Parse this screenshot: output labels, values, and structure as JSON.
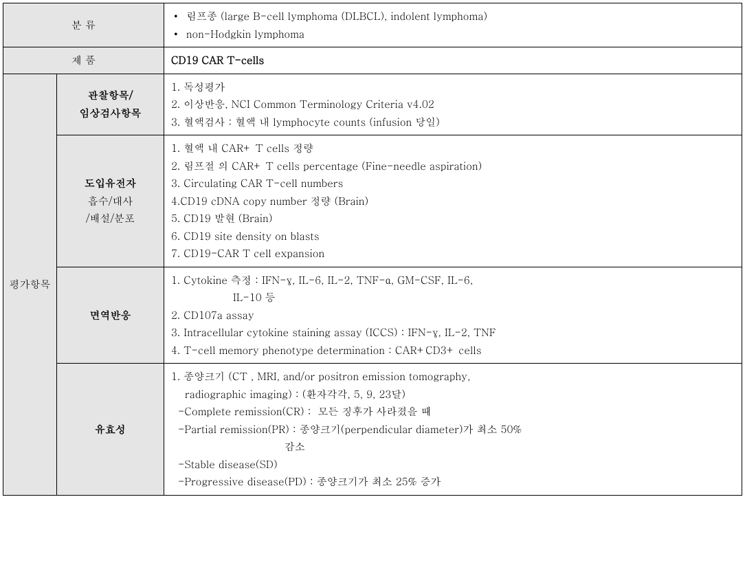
{
  "headers": {
    "classification": "분        류",
    "product": "제        품",
    "evaluation": "평가항목"
  },
  "classification_items": [
    "림프종 (large B-cell lymphoma (DLBCL), indolent lymphoma)",
    "non-Hodgkin lymphoma"
  ],
  "product_value": "CD19 CAR T-cells",
  "rows": [
    {
      "label_main": "관찰항목/",
      "label_line2": "임상검사항목",
      "label_bold": true,
      "items": [
        "1. 독성평가",
        "2. 이상반응, NCI Common Terminology Criteria v4.02",
        "3. 혈액검사 : 혈액 내 lymphocyte counts (infusion 당일)"
      ]
    },
    {
      "label_main": "도입유전자",
      "label_sub": "흡수/대사",
      "label_sub2": "/배설/분포",
      "label_bold": true,
      "items": [
        "1. 혈액 내 CAR+ T cells 정량",
        "2. 림프절 의 CAR+ T cells percentage (Fine-needle aspiration)",
        "3. Circulating CAR T-cell numbers",
        "4.CD19 cDNA copy number 정량 (Brain)",
        "5. CD19 발현 (Brain)",
        "6. CD19 site density on blasts",
        "7. CD19-CAR T cell expansion"
      ]
    },
    {
      "label_main": "면역반응",
      "label_bold": true,
      "items": [
        "1. Cytokine  측정 : IFN-γ,  IL-6, IL-2, TNF-α, GM-CSF, IL-6,",
        "                  IL-10 등",
        "2. CD107a assay",
        "3. Intracellular cytokine staining assay (ICCS) : IFN-γ, IL-2, TNF",
        "4. T-cell memory phenotype determination : CAR+CD3+ cells"
      ]
    },
    {
      "label_main": "유효성",
      "label_bold": true,
      "items": [
        "1. 종양크기 (CT , MRI, and/or positron emission tomography,",
        "    radiographic imaging) : (환자각각, 5, 9, 23달)",
        "  -Complete remission(CR) :  모든 징후가 사라졌을 때",
        "  -Partial remission(PR) : 종양크기(perpendicular diameter)가 최소 50%",
        "                                 감소",
        "  -Stable disease(SD)",
        "  -Progressive disease(PD) : 종양크기가 최소 25% 증가"
      ]
    }
  ],
  "colors": {
    "header_bg": "#e5e5e5",
    "border": "#000000",
    "text": "#000000",
    "content_bg": "#ffffff"
  }
}
